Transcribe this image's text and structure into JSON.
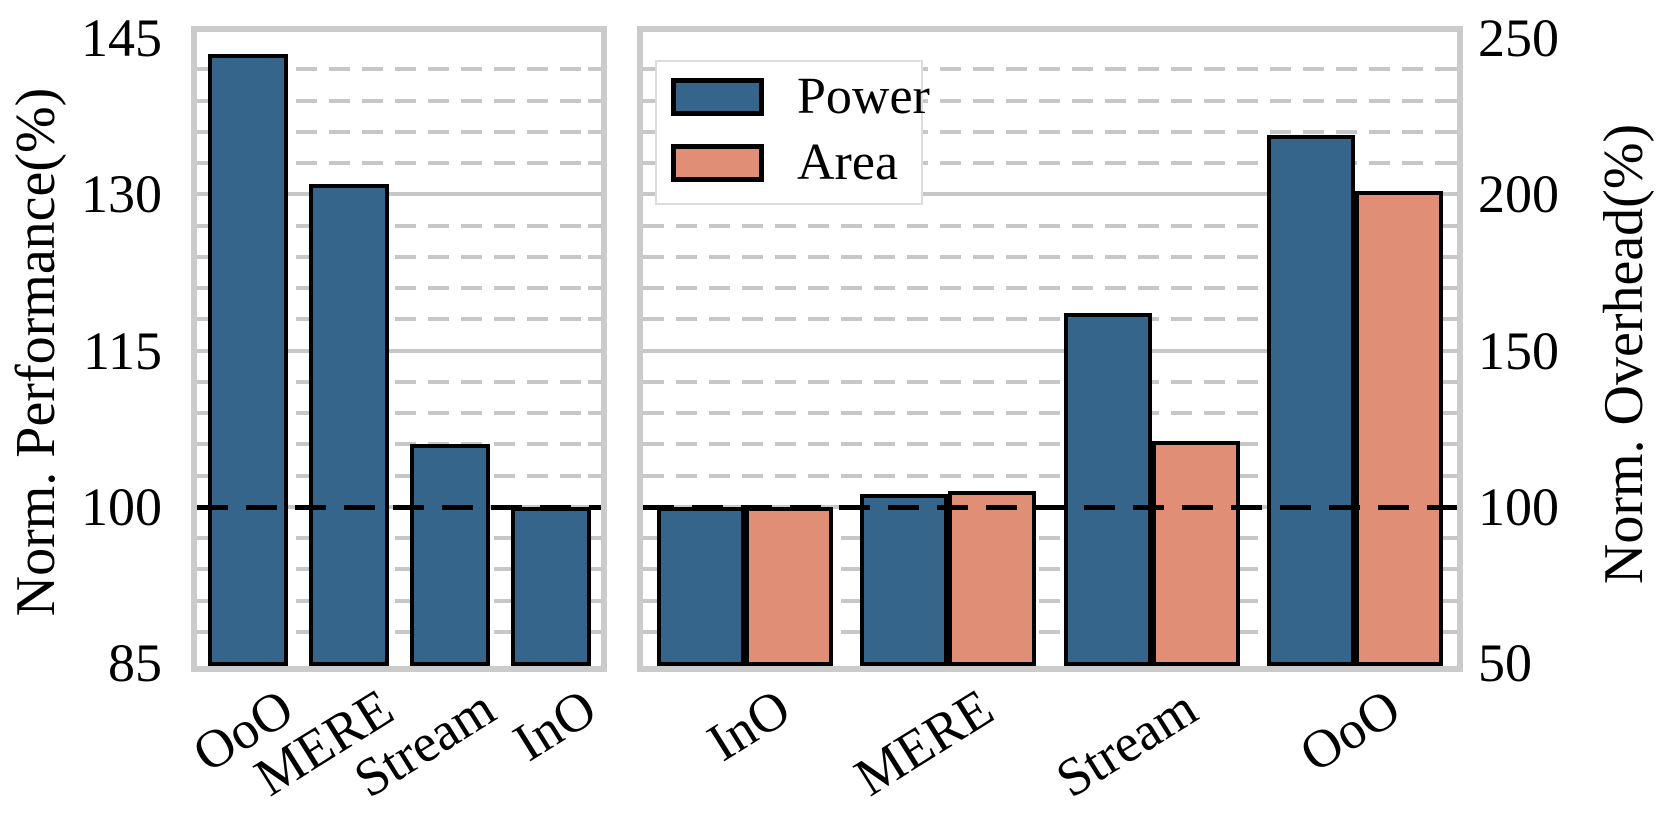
{
  "chart_data": [
    {
      "type": "bar",
      "panel": "left",
      "title": "",
      "xlabel": "",
      "ylabel": "Norm. Performance(%)",
      "categories": [
        "OoO",
        "MERE",
        "Stream",
        "InO"
      ],
      "values": [
        143.5,
        131,
        106,
        100
      ],
      "ylim": [
        85,
        145
      ],
      "yticks": [
        85,
        100,
        115,
        130,
        145
      ],
      "ytick_labels": [
        "85",
        "100",
        "115",
        "130",
        "145"
      ],
      "minor_tick_step": 3,
      "major_tick_step": 15,
      "reference_line": 100,
      "grid": "major solid gray, minor dashed gray",
      "bar_color": "#35658A"
    },
    {
      "type": "bar",
      "panel": "right",
      "title": "",
      "xlabel": "",
      "ylabel": "Norm. Overhead(%)",
      "categories": [
        "InO",
        "MERE",
        "Stream",
        "OoO"
      ],
      "series": [
        {
          "name": "Power",
          "color": "#35658A",
          "values": [
            100,
            104,
            162,
            219
          ]
        },
        {
          "name": "Area",
          "color": "#E08E75",
          "values": [
            100,
            105,
            121,
            201
          ]
        }
      ],
      "ylim": [
        50,
        250
      ],
      "yticks": [
        50,
        100,
        150,
        200,
        250
      ],
      "ytick_labels": [
        "50",
        "100",
        "150",
        "200",
        "250"
      ],
      "minor_tick_step": 10,
      "major_tick_step": 50,
      "reference_line": 100,
      "grid": "major solid gray, minor dashed gray",
      "legend": {
        "position": "upper left",
        "entries": [
          "Power",
          "Area"
        ]
      }
    }
  ],
  "styles": {
    "bar_edge_color": "#000000",
    "reference_line_color": "#000000",
    "grid_color": "#c7c7c7",
    "frame_color": "#cbcbcb",
    "power_color": "#35658A",
    "area_color": "#E08E75",
    "background": "#ffffff"
  }
}
